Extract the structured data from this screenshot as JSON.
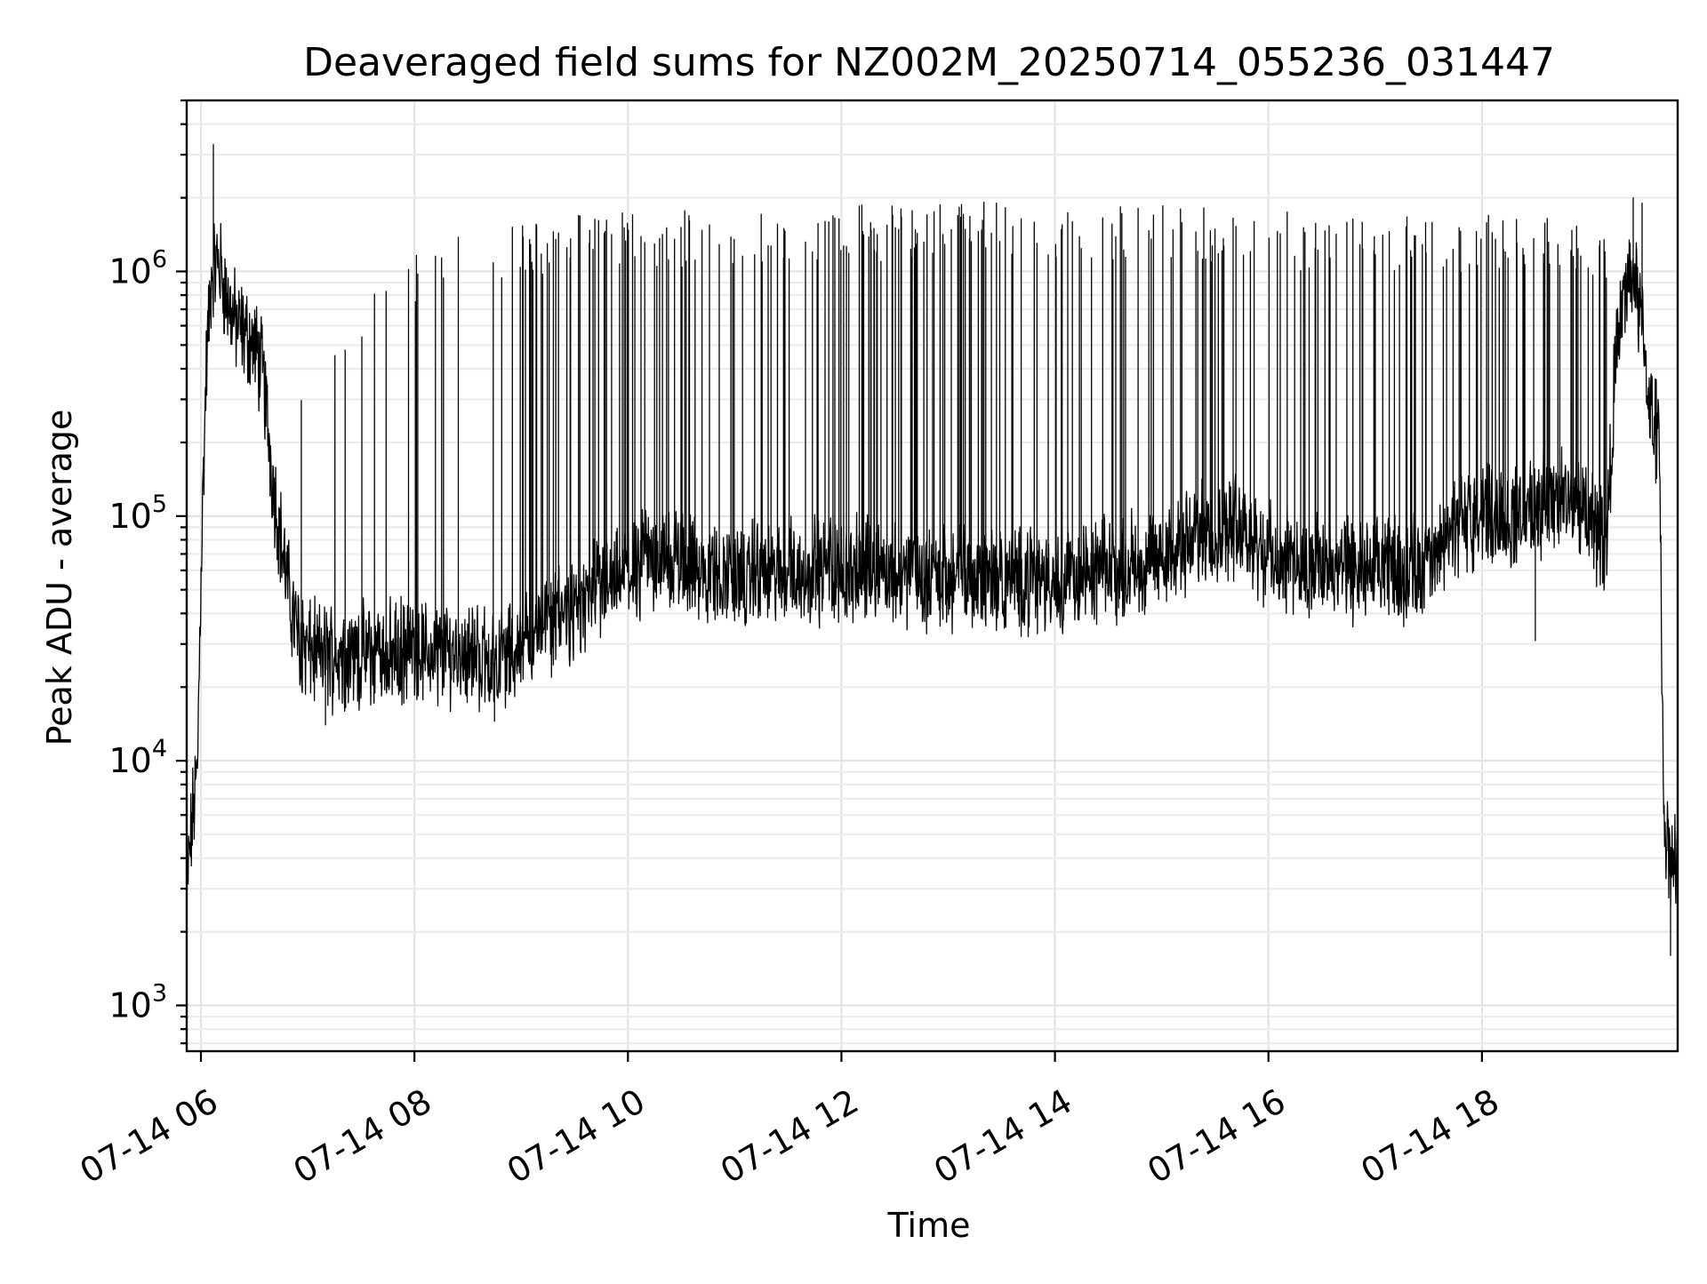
{
  "chart_data": {
    "type": "line",
    "title": "Deaveraged field sums for NZ002M_20250714_055236_031447",
    "xlabel": "Time",
    "ylabel": "Peak ADU - average",
    "yscale": "log",
    "ylim": [
      650,
      5000000
    ],
    "xlim": [
      "2025-07-14 05:52",
      "2025-07-14 19:50"
    ],
    "grid": true,
    "x_ticks": [
      {
        "x": "2025-07-14 06:00",
        "label": "07-14 06"
      },
      {
        "x": "2025-07-14 08:00",
        "label": "07-14 08"
      },
      {
        "x": "2025-07-14 10:00",
        "label": "07-14 10"
      },
      {
        "x": "2025-07-14 12:00",
        "label": "07-14 12"
      },
      {
        "x": "2025-07-14 14:00",
        "label": "07-14 14"
      },
      {
        "x": "2025-07-14 16:00",
        "label": "07-14 16"
      },
      {
        "x": "2025-07-14 18:00",
        "label": "07-14 18"
      }
    ],
    "y_ticks": [
      {
        "value": 1000,
        "base": "10",
        "exp": "3"
      },
      {
        "value": 10000,
        "base": "10",
        "exp": "4"
      },
      {
        "value": 100000,
        "base": "10",
        "exp": "5"
      },
      {
        "value": 1000000,
        "base": "10",
        "exp": "6"
      }
    ],
    "colors": {
      "line": "#000000",
      "grid": "#e3e3e3",
      "background": "#ffffff"
    },
    "series": [
      {
        "baseline": [
          [
            "2025-07-14 05:52",
            3000
          ],
          [
            "2025-07-14 05:55",
            5500
          ],
          [
            "2025-07-14 05:58",
            9000
          ],
          [
            "2025-07-14 06:00",
            60000
          ],
          [
            "2025-07-14 06:03",
            400000
          ],
          [
            "2025-07-14 06:06",
            1000000
          ],
          [
            "2025-07-14 06:10",
            1100000
          ],
          [
            "2025-07-14 06:15",
            750000
          ],
          [
            "2025-07-14 06:20",
            600000
          ],
          [
            "2025-07-14 06:25",
            550000
          ],
          [
            "2025-07-14 06:30",
            500000
          ],
          [
            "2025-07-14 06:35",
            380000
          ],
          [
            "2025-07-14 06:40",
            150000
          ],
          [
            "2025-07-14 06:45",
            80000
          ],
          [
            "2025-07-14 06:50",
            45000
          ],
          [
            "2025-07-14 06:55",
            32000
          ],
          [
            "2025-07-14 07:00",
            28000
          ],
          [
            "2025-07-14 07:15",
            27000
          ],
          [
            "2025-07-14 07:30",
            27000
          ],
          [
            "2025-07-14 08:00",
            28000
          ],
          [
            "2025-07-14 08:30",
            28000
          ],
          [
            "2025-07-14 08:45",
            25000
          ],
          [
            "2025-07-14 09:00",
            30000
          ],
          [
            "2025-07-14 09:15",
            37000
          ],
          [
            "2025-07-14 09:30",
            42000
          ],
          [
            "2025-07-14 09:45",
            50000
          ],
          [
            "2025-07-14 10:00",
            57000
          ],
          [
            "2025-07-14 10:15",
            70000
          ],
          [
            "2025-07-14 10:30",
            65000
          ],
          [
            "2025-07-14 10:45",
            60000
          ],
          [
            "2025-07-14 11:00",
            57000
          ],
          [
            "2025-07-14 12:00",
            60000
          ],
          [
            "2025-07-14 13:00",
            57000
          ],
          [
            "2025-07-14 14:00",
            55000
          ],
          [
            "2025-07-14 14:30",
            60000
          ],
          [
            "2025-07-14 15:00",
            70000
          ],
          [
            "2025-07-14 15:30",
            85000
          ],
          [
            "2025-07-14 15:45",
            95000
          ],
          [
            "2025-07-14 16:00",
            68000
          ],
          [
            "2025-07-14 16:30",
            60000
          ],
          [
            "2025-07-14 17:00",
            60000
          ],
          [
            "2025-07-14 17:30",
            62000
          ],
          [
            "2025-07-14 17:45",
            90000
          ],
          [
            "2025-07-14 18:00",
            110000
          ],
          [
            "2025-07-14 18:15",
            95000
          ],
          [
            "2025-07-14 18:30",
            110000
          ],
          [
            "2025-07-14 18:45",
            120000
          ],
          [
            "2025-07-14 19:00",
            100000
          ],
          [
            "2025-07-14 19:10",
            80000
          ],
          [
            "2025-07-14 19:15",
            400000
          ],
          [
            "2025-07-14 19:20",
            800000
          ],
          [
            "2025-07-14 19:25",
            1000000
          ],
          [
            "2025-07-14 19:30",
            600000
          ],
          [
            "2025-07-14 19:35",
            250000
          ],
          [
            "2025-07-14 19:40",
            200000
          ],
          [
            "2025-07-14 19:42",
            6000
          ],
          [
            "2025-07-14 19:45",
            4500
          ],
          [
            "2025-07-14 19:50",
            3500
          ]
        ],
        "spike_band": [
          [
            "2025-07-14 06:55",
            300000
          ],
          [
            "2025-07-14 07:20",
            700000
          ],
          [
            "2025-07-14 08:00",
            1100000
          ],
          [
            "2025-07-14 09:00",
            1400000
          ],
          [
            "2025-07-14 10:00",
            1500000
          ],
          [
            "2025-07-14 12:00",
            1650000
          ],
          [
            "2025-07-14 15:00",
            1600000
          ],
          [
            "2025-07-14 16:00",
            1500000
          ],
          [
            "2025-07-14 18:00",
            1450000
          ],
          [
            "2025-07-14 19:10",
            1350000
          ]
        ],
        "peaks": [
          [
            "2025-07-14 06:07",
            3300000
          ],
          [
            "2025-07-14 12:10",
            1850000
          ],
          [
            "2025-07-14 19:25",
            2000000
          ],
          [
            "2025-07-14 19:30",
            1900000
          ]
        ],
        "dips": [
          [
            "2025-07-14 07:10",
            14000
          ],
          [
            "2025-07-14 08:45",
            14500
          ],
          [
            "2025-07-14 18:30",
            31000
          ],
          [
            "2025-07-14 19:46",
            1600
          ]
        ]
      }
    ]
  }
}
